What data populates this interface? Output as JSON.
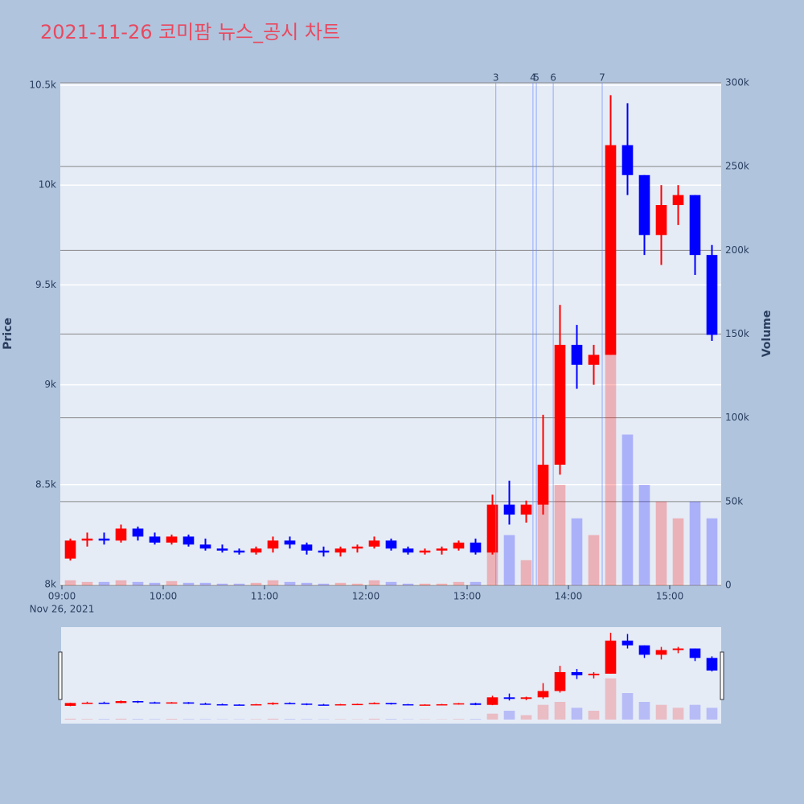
{
  "chart_data": {
    "type": "candlestick",
    "title": "2021-11-26 코미팜 뉴스_공시 차트",
    "y_title": "Price",
    "y2_title": "Volume",
    "x_date_label": "Nov 26, 2021",
    "increasing_color": "#ff0000",
    "decreasing_color": "#0000ff",
    "x": [
      "09:00",
      "09:10",
      "09:20",
      "09:30",
      "09:40",
      "09:50",
      "10:00",
      "10:10",
      "10:20",
      "10:30",
      "10:40",
      "10:50",
      "11:00",
      "11:10",
      "11:20",
      "11:30",
      "11:40",
      "11:50",
      "12:00",
      "12:10",
      "12:20",
      "12:30",
      "12:40",
      "12:50",
      "13:00",
      "13:10",
      "13:20",
      "13:30",
      "13:40",
      "13:50",
      "14:00",
      "14:10",
      "14:20",
      "14:30",
      "14:40",
      "14:50",
      "15:00",
      "15:10",
      "15:20"
    ],
    "open": [
      8130,
      8220,
      8230,
      8220,
      8280,
      8240,
      8210,
      8240,
      8200,
      8180,
      8170,
      8160,
      8180,
      8220,
      8200,
      8170,
      8160,
      8180,
      8190,
      8220,
      8180,
      8160,
      8170,
      8180,
      8210,
      8160,
      8400,
      8350,
      8400,
      8600,
      9200,
      9100,
      9150,
      10200,
      10050,
      9750,
      9900,
      9950,
      9650
    ],
    "high": [
      8230,
      8260,
      8260,
      8300,
      8290,
      8260,
      8250,
      8250,
      8230,
      8200,
      8180,
      8190,
      8240,
      8240,
      8210,
      8190,
      8190,
      8200,
      8240,
      8230,
      8190,
      8180,
      8190,
      8220,
      8230,
      8450,
      8520,
      8420,
      8850,
      9400,
      9300,
      9200,
      10450,
      10410,
      10050,
      10000,
      10000,
      9950,
      9700
    ],
    "low": [
      8120,
      8190,
      8200,
      8210,
      8220,
      8200,
      8200,
      8190,
      8170,
      8160,
      8150,
      8150,
      8160,
      8180,
      8150,
      8140,
      8140,
      8160,
      8180,
      8170,
      8150,
      8150,
      8150,
      8170,
      8150,
      8150,
      8300,
      8310,
      8350,
      8550,
      8980,
      9000,
      9150,
      9950,
      9650,
      9600,
      9800,
      9550,
      9220
    ],
    "close": [
      8220,
      8230,
      8220,
      8280,
      8240,
      8210,
      8240,
      8200,
      8180,
      8170,
      8160,
      8180,
      8220,
      8200,
      8170,
      8160,
      8180,
      8190,
      8220,
      8180,
      8160,
      8170,
      8180,
      8210,
      8160,
      8400,
      8350,
      8400,
      8600,
      9200,
      9100,
      9150,
      10200,
      10050,
      9750,
      9900,
      9950,
      9650,
      9250
    ],
    "volume": [
      3000,
      2000,
      2000,
      3000,
      2000,
      1500,
      2500,
      1500,
      1500,
      1000,
      1000,
      1500,
      3000,
      2000,
      1500,
      1000,
      1500,
      1000,
      3000,
      2000,
      1000,
      1000,
      1000,
      2000,
      2000,
      20000,
      30000,
      15000,
      50000,
      60000,
      40000,
      30000,
      140000,
      90000,
      60000,
      50000,
      40000,
      50000,
      40000
    ],
    "annotations": [
      {
        "x": "13:17",
        "text": "3"
      },
      {
        "x": "13:39",
        "text": "4"
      },
      {
        "x": "13:41",
        "text": "5"
      },
      {
        "x": "13:51",
        "text": "6"
      },
      {
        "x": "14:20",
        "text": "7"
      }
    ],
    "xlim": [
      "09:00",
      "15:30"
    ],
    "xticks": [
      "09:00",
      "10:00",
      "11:00",
      "12:00",
      "13:00",
      "14:00",
      "15:00"
    ],
    "ylim": [
      8000,
      10500
    ],
    "yticks": [
      {
        "value": 8000,
        "label": "8k"
      },
      {
        "value": 8500,
        "label": "8.5k"
      },
      {
        "value": 9000,
        "label": "9k"
      },
      {
        "value": 9500,
        "label": "9.5k"
      },
      {
        "value": 10000,
        "label": "10k"
      },
      {
        "value": 10500,
        "label": "10.5k"
      }
    ],
    "y2lim": [
      0,
      300000
    ],
    "y2ticks": [
      0,
      {
        "value": 50000,
        "label": "50k"
      },
      {
        "value": 100000,
        "label": "100k"
      },
      {
        "value": 150000,
        "label": "150k"
      },
      {
        "value": 200000,
        "label": "200k"
      },
      {
        "value": 250000,
        "label": "250k"
      },
      {
        "value": 300000,
        "label": "300k"
      }
    ]
  }
}
